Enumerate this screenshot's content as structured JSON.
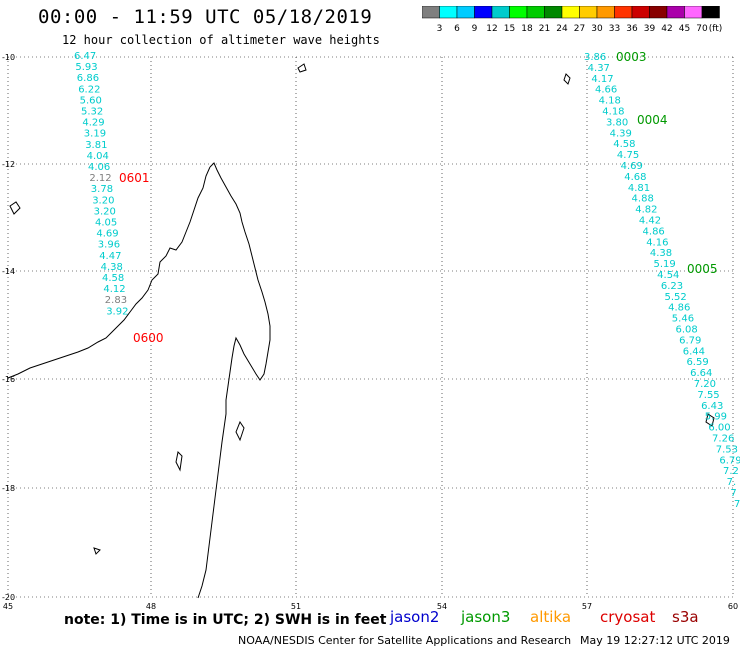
{
  "title": "00:00 - 11:59 UTC 05/18/2019",
  "subtitle": "12 hour collection of altimeter wave heights",
  "colorbar": {
    "labels": [
      "3",
      "6",
      "9",
      "12",
      "15",
      "18",
      "21",
      "24",
      "27",
      "30",
      "33",
      "36",
      "39",
      "42",
      "45",
      "70"
    ],
    "unit": "(ft)",
    "colors": [
      "#7f7f7f",
      "#00ffff",
      "#00ccff",
      "#0000ff",
      "#00cccc",
      "#00ff00",
      "#00cc00",
      "#008800",
      "#ffff00",
      "#ffcc00",
      "#ff9900",
      "#ff3300",
      "#cc0000",
      "#880000",
      "#aa00aa",
      "#ff66ff",
      "#000000"
    ]
  },
  "axes": {
    "lat_ticks": [
      "-10",
      "-12",
      "-14",
      "-16",
      "-18",
      "-20"
    ],
    "lon_ticks": [
      "45",
      "48",
      "51",
      "54",
      "57",
      "60"
    ]
  },
  "tracks": {
    "west": [
      {
        "value": "6.47",
        "color": "#00cccc"
      },
      {
        "value": "5.93",
        "color": "#00cccc"
      },
      {
        "value": "6.86",
        "color": "#00cccc"
      },
      {
        "value": "6.22",
        "color": "#00cccc"
      },
      {
        "value": "5.60",
        "color": "#00cccc"
      },
      {
        "value": "5.32",
        "color": "#00cccc"
      },
      {
        "value": "4.29",
        "color": "#00cccc"
      },
      {
        "value": "3.19",
        "color": "#00cccc"
      },
      {
        "value": "3.81",
        "color": "#00cccc"
      },
      {
        "value": "4.04",
        "color": "#00cccc"
      },
      {
        "value": "4.06",
        "color": "#00cccc"
      },
      {
        "value": "2.12",
        "color": "#7f7f7f"
      },
      {
        "value": "3.78",
        "color": "#00cccc"
      },
      {
        "value": "3.20",
        "color": "#00cccc"
      },
      {
        "value": "3.20",
        "color": "#00cccc"
      },
      {
        "value": "4.05",
        "color": "#00cccc"
      },
      {
        "value": "4.69",
        "color": "#00cccc"
      },
      {
        "value": "3.96",
        "color": "#00cccc"
      },
      {
        "value": "4.47",
        "color": "#00cccc"
      },
      {
        "value": "4.38",
        "color": "#00cccc"
      },
      {
        "value": "4.58",
        "color": "#00cccc"
      },
      {
        "value": "4.12",
        "color": "#00cccc"
      },
      {
        "value": "2.83",
        "color": "#7f7f7f"
      },
      {
        "value": "3.92",
        "color": "#00cccc"
      }
    ],
    "west_times": [
      {
        "label": "0601",
        "color": "#ff0000"
      },
      {
        "label": "0600",
        "color": "#ff0000"
      }
    ],
    "east": [
      {
        "value": "3.86",
        "color": "#00cccc"
      },
      {
        "value": "4.37",
        "color": "#00cccc"
      },
      {
        "value": "4.17",
        "color": "#00cccc"
      },
      {
        "value": "4.66",
        "color": "#00cccc"
      },
      {
        "value": "4.18",
        "color": "#00cccc"
      },
      {
        "value": "4.18",
        "color": "#00cccc"
      },
      {
        "value": "3.80",
        "color": "#00cccc"
      },
      {
        "value": "4.39",
        "color": "#00cccc"
      },
      {
        "value": "4.58",
        "color": "#00cccc"
      },
      {
        "value": "4.75",
        "color": "#00cccc"
      },
      {
        "value": "4.69",
        "color": "#00cccc"
      },
      {
        "value": "4.68",
        "color": "#00cccc"
      },
      {
        "value": "4.81",
        "color": "#00cccc"
      },
      {
        "value": "4.88",
        "color": "#00cccc"
      },
      {
        "value": "4.82",
        "color": "#00cccc"
      },
      {
        "value": "4.42",
        "color": "#00cccc"
      },
      {
        "value": "4.86",
        "color": "#00cccc"
      },
      {
        "value": "4.16",
        "color": "#00cccc"
      },
      {
        "value": "4.38",
        "color": "#00cccc"
      },
      {
        "value": "5.19",
        "color": "#00cccc"
      },
      {
        "value": "4.54",
        "color": "#00cccc"
      },
      {
        "value": "6.23",
        "color": "#00cccc"
      },
      {
        "value": "5.52",
        "color": "#00cccc"
      },
      {
        "value": "4.86",
        "color": "#00cccc"
      },
      {
        "value": "5.46",
        "color": "#00cccc"
      },
      {
        "value": "6.08",
        "color": "#00cccc"
      },
      {
        "value": "6.79",
        "color": "#00cccc"
      },
      {
        "value": "6.44",
        "color": "#00cccc"
      },
      {
        "value": "6.59",
        "color": "#00cccc"
      },
      {
        "value": "6.64",
        "color": "#00cccc"
      },
      {
        "value": "7.20",
        "color": "#00cccc"
      },
      {
        "value": "7.55",
        "color": "#00cccc"
      },
      {
        "value": "6.43",
        "color": "#00cccc"
      },
      {
        "value": "5.99",
        "color": "#00cccc"
      },
      {
        "value": "6.00",
        "color": "#00cccc"
      },
      {
        "value": "7.26",
        "color": "#00cccc"
      },
      {
        "value": "7.53",
        "color": "#00cccc"
      },
      {
        "value": "6.79",
        "color": "#00cccc"
      },
      {
        "value": "7.2",
        "color": "#00cccc"
      },
      {
        "value": "7.",
        "color": "#00cccc"
      },
      {
        "value": "7",
        "color": "#00cccc"
      },
      {
        "value": "7",
        "color": "#00cccc"
      }
    ],
    "east_times": [
      {
        "label": "0003",
        "color": "#009900"
      },
      {
        "label": "0004",
        "color": "#009900"
      },
      {
        "label": "0005",
        "color": "#009900"
      }
    ]
  },
  "footer": {
    "note": "note: 1) Time is in UTC; 2) SWH is in feet",
    "legend": [
      {
        "name": "jason2",
        "color": "#0000cc"
      },
      {
        "name": "jason3",
        "color": "#009900"
      },
      {
        "name": "altika",
        "color": "#ff9900"
      },
      {
        "name": "cryosat",
        "color": "#dd0000"
      },
      {
        "name": "s3a",
        "color": "#990000"
      }
    ],
    "credit": "NOAA/NESDIS Center for Satellite Applications and Research",
    "timestamp": "May 19 12:27:12 UTC 2019"
  }
}
